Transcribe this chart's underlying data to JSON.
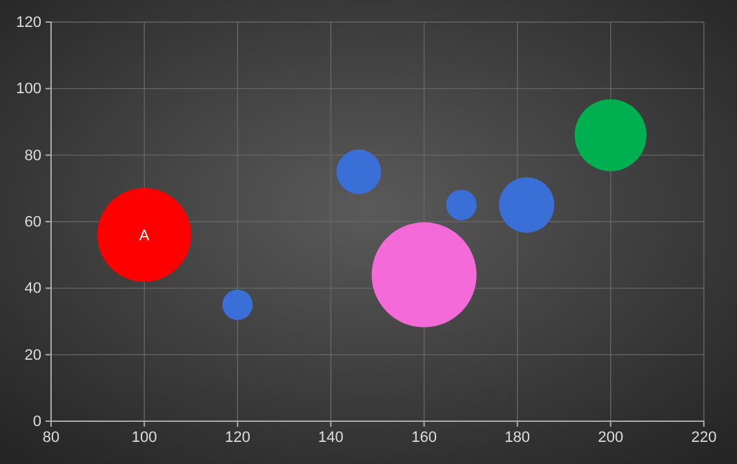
{
  "chart_data": {
    "type": "bubble",
    "x": [
      100,
      120,
      146,
      160,
      168,
      182,
      200
    ],
    "values": [
      56,
      35,
      75,
      44,
      65,
      65,
      86
    ],
    "sizes": [
      0.8,
      0.084,
      0.18,
      1,
      0.084,
      0.28,
      0.47
    ],
    "colors": [
      "#ff0000",
      "#3a6fd8",
      "#3a6fd8",
      "#f46ad8",
      "#3a6fd8",
      "#3a6fd8",
      "#00b050"
    ],
    "xlim": [
      80,
      220
    ],
    "xticks": [
      80,
      100,
      120,
      140,
      160,
      180,
      200,
      220
    ],
    "ylim": [
      0,
      120
    ],
    "yticks": [
      0,
      20,
      40,
      60,
      80,
      100,
      120
    ],
    "grid": true,
    "annotations": [
      {
        "text": "A",
        "x": 100,
        "y": 56
      }
    ]
  }
}
